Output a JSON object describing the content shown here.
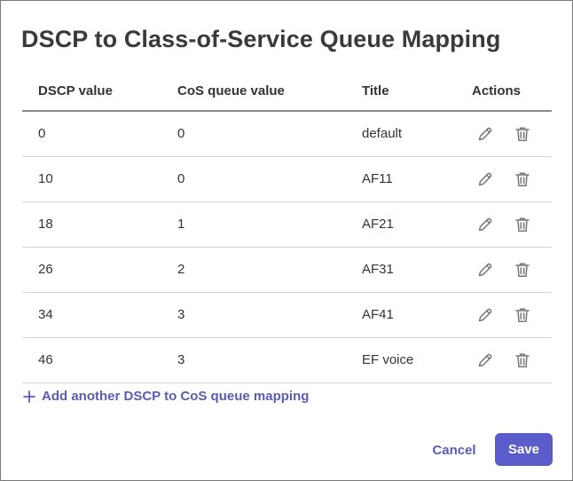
{
  "dialog": {
    "title": "DSCP to Class-of-Service Queue Mapping"
  },
  "table": {
    "headers": [
      "DSCP value",
      "CoS queue value",
      "Title",
      "Actions"
    ],
    "rows": [
      {
        "dscp": "0",
        "cos": "0",
        "title": "default"
      },
      {
        "dscp": "10",
        "cos": "0",
        "title": "AF11"
      },
      {
        "dscp": "18",
        "cos": "1",
        "title": "AF21"
      },
      {
        "dscp": "26",
        "cos": "2",
        "title": "AF31"
      },
      {
        "dscp": "34",
        "cos": "3",
        "title": "AF41"
      },
      {
        "dscp": "46",
        "cos": "3",
        "title": "EF voice"
      }
    ],
    "row_actions": [
      "pencil-icon",
      "trash-icon"
    ]
  },
  "add_mapping": {
    "label": "Add another DSCP to CoS queue mapping",
    "icon": "plus-icon"
  },
  "footer": {
    "cancel_label": "Cancel",
    "save_label": "Save"
  },
  "colors": {
    "accent": "#5b5bc9",
    "link": "#5b5bb5",
    "icon": "#777777",
    "text": "#333333"
  }
}
